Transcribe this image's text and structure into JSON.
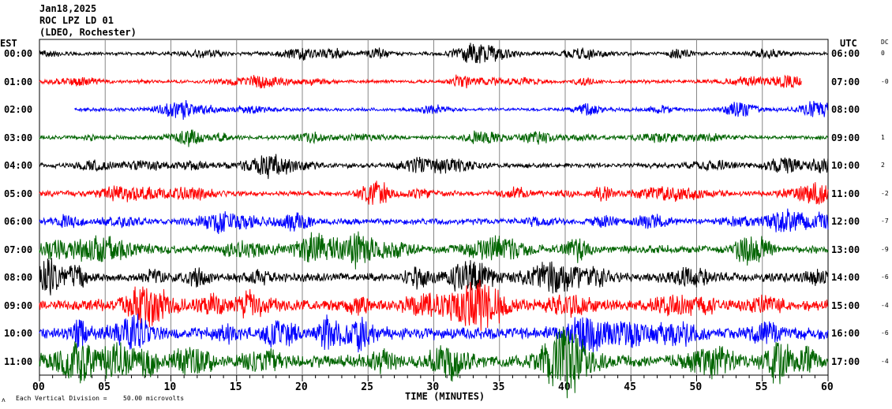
{
  "header": {
    "date": "Jan18,2025",
    "station": "ROC LPZ LD 01",
    "network": "(LDEO, Rochester)"
  },
  "left_axis_title": "EST",
  "right_axis_title": "UTC",
  "dc_title": "DC",
  "footer": {
    "mark": "ʌ",
    "scale_label": "Each Vertical Division =",
    "scale_value": "50.00 microvolts"
  },
  "chart_data": {
    "type": "line",
    "title": "ROC LPZ LD 01 helicorder",
    "xlabel": "TIME (MINUTES)",
    "xlim": [
      0,
      60
    ],
    "x_ticks": [
      "00",
      "05",
      "10",
      "15",
      "20",
      "25",
      "30",
      "35",
      "40",
      "45",
      "50",
      "55",
      "60"
    ],
    "x_tick_values": [
      0,
      5,
      10,
      15,
      20,
      25,
      30,
      35,
      40,
      45,
      50,
      55,
      60
    ],
    "minor_tick_step_min": 1,
    "grid": true,
    "units_per_division_uV": 50,
    "rows": [
      {
        "est": "00:00",
        "utc": "06:00",
        "dc": "0",
        "color": "#000000",
        "start_min": 0,
        "end_min": 60,
        "amplitude_uV": 5
      },
      {
        "est": "01:00",
        "utc": "07:00",
        "dc": "-0",
        "color": "#ff0000",
        "start_min": 0,
        "end_min": 58,
        "amplitude_uV": 5
      },
      {
        "est": "02:00",
        "utc": "08:00",
        "dc": "",
        "color": "#0000ff",
        "start_min": 2.7,
        "end_min": 60,
        "amplitude_uV": 5
      },
      {
        "est": "03:00",
        "utc": "09:00",
        "dc": "1",
        "color": "#006400",
        "start_min": 0,
        "end_min": 60,
        "amplitude_uV": 6
      },
      {
        "est": "04:00",
        "utc": "10:00",
        "dc": "2",
        "color": "#000000",
        "start_min": 0,
        "end_min": 60,
        "amplitude_uV": 7
      },
      {
        "est": "05:00",
        "utc": "11:00",
        "dc": "-2",
        "color": "#ff0000",
        "start_min": 0,
        "end_min": 60,
        "amplitude_uV": 8
      },
      {
        "est": "06:00",
        "utc": "12:00",
        "dc": "-7",
        "color": "#0000ff",
        "start_min": 0,
        "end_min": 60,
        "amplitude_uV": 9
      },
      {
        "est": "07:00",
        "utc": "13:00",
        "dc": "-9",
        "color": "#006400",
        "start_min": 0,
        "end_min": 60,
        "amplitude_uV": 12
      },
      {
        "est": "08:00",
        "utc": "14:00",
        "dc": "-6",
        "color": "#000000",
        "start_min": 0,
        "end_min": 60,
        "amplitude_uV": 13
      },
      {
        "est": "09:00",
        "utc": "15:00",
        "dc": "-4",
        "color": "#ff0000",
        "start_min": 0,
        "end_min": 60,
        "amplitude_uV": 16
      },
      {
        "est": "10:00",
        "utc": "16:00",
        "dc": "-6",
        "color": "#0000ff",
        "start_min": 0,
        "end_min": 60,
        "amplitude_uV": 17
      },
      {
        "est": "11:00",
        "utc": "17:00",
        "dc": "-4",
        "color": "#006400",
        "start_min": 0,
        "end_min": 60,
        "amplitude_uV": 18
      }
    ]
  }
}
